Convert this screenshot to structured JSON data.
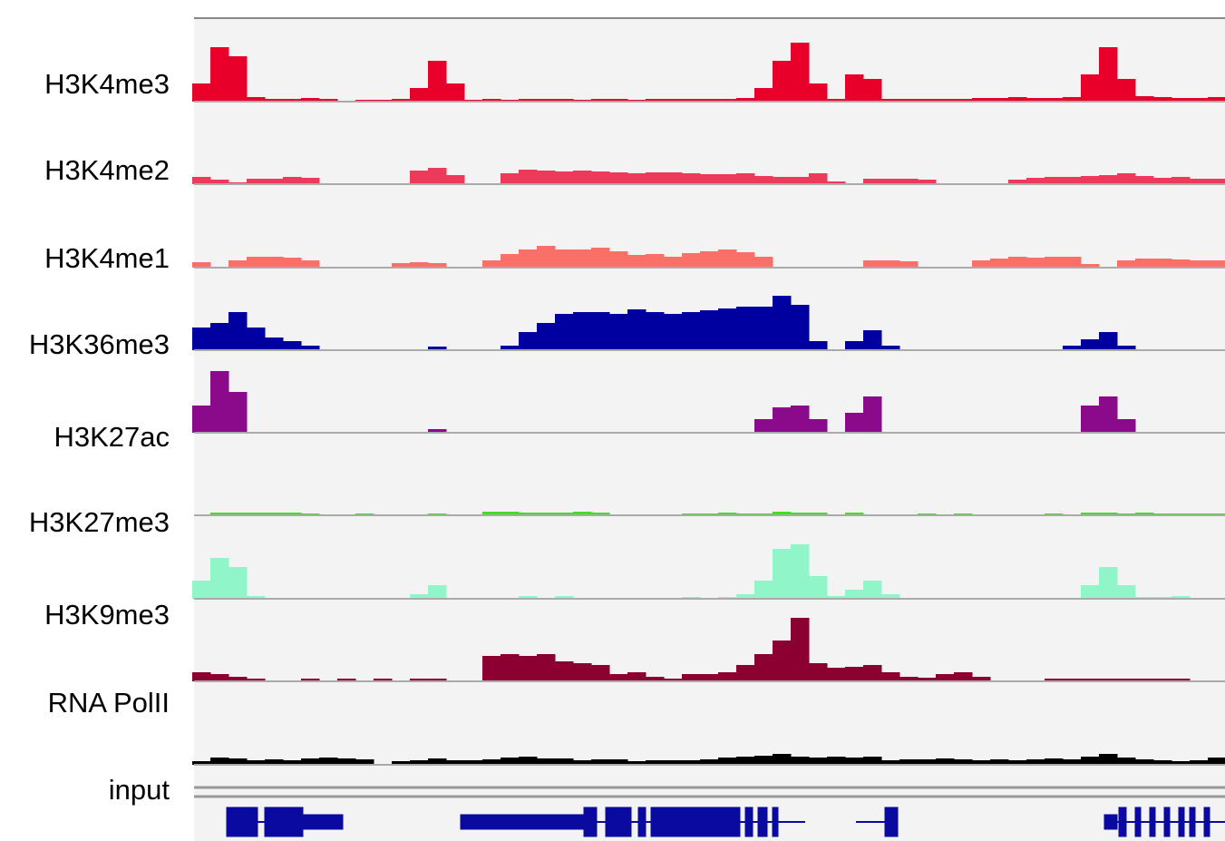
{
  "chart_data": {
    "type": "bar",
    "series": [
      {
        "name": "H3K4me3",
        "color": "#e8002a",
        "values": [
          20,
          60,
          50,
          5,
          3,
          3,
          4,
          3,
          0,
          2,
          2,
          3,
          15,
          45,
          20,
          2,
          3,
          2,
          3,
          3,
          3,
          2,
          3,
          3,
          2,
          3,
          3,
          3,
          3,
          3,
          4,
          15,
          45,
          65,
          20,
          3,
          30,
          25,
          3,
          3,
          3,
          3,
          3,
          4,
          4,
          5,
          4,
          4,
          5,
          30,
          60,
          25,
          6,
          5,
          4,
          4,
          5
        ]
      },
      {
        "name": "H3K4me2",
        "color": "#ee3a5a",
        "values": [
          8,
          5,
          2,
          6,
          6,
          8,
          7,
          0,
          0,
          0,
          0,
          0,
          15,
          18,
          10,
          0,
          0,
          12,
          16,
          15,
          14,
          15,
          14,
          13,
          12,
          13,
          13,
          12,
          11,
          11,
          12,
          9,
          8,
          8,
          12,
          3,
          0,
          6,
          6,
          6,
          5,
          0,
          0,
          0,
          0,
          5,
          7,
          8,
          8,
          9,
          10,
          12,
          9,
          7,
          8,
          6,
          6
        ]
      },
      {
        "name": "H3K4me1",
        "color": "#f87068",
        "values": [
          6,
          0,
          8,
          12,
          12,
          11,
          8,
          0,
          0,
          0,
          0,
          5,
          6,
          5,
          0,
          0,
          8,
          15,
          20,
          24,
          20,
          20,
          22,
          18,
          14,
          15,
          12,
          16,
          18,
          20,
          17,
          12,
          0,
          0,
          0,
          0,
          0,
          8,
          8,
          7,
          0,
          0,
          0,
          8,
          10,
          12,
          11,
          12,
          12,
          4,
          0,
          8,
          10,
          10,
          9,
          8,
          8
        ]
      },
      {
        "name": "H3K36me3",
        "color": "#0000a0",
        "values": [
          25,
          30,
          42,
          25,
          14,
          10,
          5,
          0,
          0,
          0,
          0,
          0,
          0,
          4,
          0,
          0,
          0,
          5,
          20,
          30,
          40,
          42,
          42,
          40,
          45,
          42,
          40,
          42,
          44,
          46,
          48,
          48,
          60,
          50,
          10,
          0,
          10,
          22,
          5,
          0,
          0,
          0,
          0,
          0,
          0,
          0,
          0,
          0,
          5,
          12,
          20,
          5,
          0,
          0,
          0,
          0,
          0
        ]
      },
      {
        "name": "H3K27ac",
        "color": "#8b0a8b",
        "values": [
          30,
          68,
          45,
          0,
          0,
          0,
          0,
          0,
          0,
          0,
          0,
          0,
          0,
          4,
          0,
          0,
          0,
          0,
          0,
          0,
          0,
          0,
          0,
          0,
          0,
          0,
          0,
          0,
          0,
          0,
          0,
          15,
          28,
          30,
          15,
          0,
          22,
          40,
          0,
          0,
          0,
          0,
          0,
          0,
          0,
          0,
          0,
          0,
          0,
          30,
          40,
          15,
          0,
          0,
          0,
          0,
          0
        ]
      },
      {
        "name": "H3K27me3",
        "color": "#40e020",
        "values": [
          0,
          3,
          3,
          3,
          3,
          3,
          2,
          0,
          0,
          2,
          0,
          0,
          0,
          2,
          0,
          0,
          4,
          4,
          3,
          3,
          3,
          4,
          3,
          0,
          0,
          0,
          0,
          2,
          2,
          3,
          2,
          2,
          4,
          3,
          3,
          0,
          3,
          0,
          0,
          0,
          2,
          0,
          2,
          0,
          0,
          0,
          0,
          2,
          0,
          3,
          3,
          2,
          3,
          2,
          2,
          2,
          2
        ]
      },
      {
        "name": "H3K9me3",
        "color": "#90f5c8",
        "values": [
          20,
          45,
          35,
          3,
          0,
          0,
          0,
          0,
          0,
          0,
          0,
          0,
          5,
          15,
          0,
          0,
          0,
          0,
          3,
          0,
          3,
          0,
          0,
          0,
          0,
          0,
          0,
          2,
          0,
          2,
          5,
          20,
          55,
          60,
          25,
          3,
          10,
          20,
          5,
          0,
          0,
          0,
          0,
          0,
          0,
          0,
          0,
          0,
          0,
          15,
          35,
          15,
          2,
          2,
          3,
          0,
          0
        ]
      },
      {
        "name": "RNA PolII",
        "color": "#8b0030",
        "values": [
          10,
          8,
          5,
          3,
          0,
          0,
          3,
          0,
          3,
          0,
          3,
          0,
          3,
          3,
          0,
          0,
          28,
          30,
          28,
          30,
          22,
          20,
          18,
          8,
          10,
          5,
          3,
          8,
          8,
          10,
          18,
          30,
          45,
          70,
          20,
          15,
          16,
          18,
          10,
          5,
          4,
          8,
          10,
          5,
          0,
          0,
          0,
          3,
          3,
          3,
          3,
          3,
          3,
          3,
          3,
          0,
          0
        ]
      },
      {
        "name": "input",
        "color": "#000000",
        "values": [
          4,
          8,
          7,
          5,
          6,
          5,
          7,
          8,
          7,
          6,
          0,
          4,
          5,
          7,
          5,
          5,
          6,
          8,
          9,
          7,
          7,
          5,
          6,
          6,
          4,
          5,
          5,
          5,
          6,
          8,
          9,
          10,
          12,
          9,
          8,
          9,
          8,
          9,
          5,
          6,
          6,
          7,
          6,
          5,
          6,
          5,
          6,
          7,
          6,
          9,
          12,
          8,
          6,
          5,
          4,
          5,
          8
        ]
      }
    ]
  }
}
